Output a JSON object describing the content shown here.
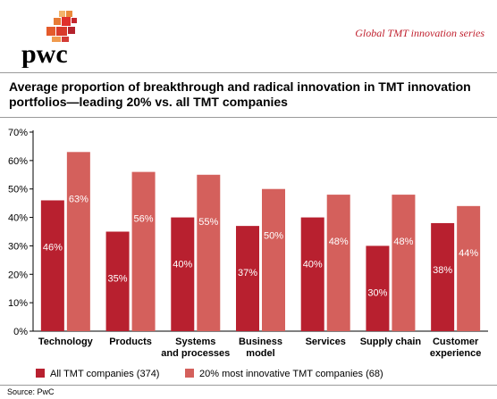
{
  "brand": {
    "logo_text": "pwc"
  },
  "header": {
    "series_label": "Global TMT innovation series"
  },
  "chart_data": {
    "type": "bar",
    "title": "Average proportion of breakthrough and radical innovation in TMT innovation portfolios—leading 20% vs. all TMT companies",
    "categories": [
      [
        "Technology"
      ],
      [
        "Products"
      ],
      [
        "Systems",
        "and processes"
      ],
      [
        "Business",
        "model"
      ],
      [
        "Services"
      ],
      [
        "Supply chain"
      ],
      [
        "Customer",
        "experience"
      ]
    ],
    "series": [
      {
        "name": "All TMT companies (374)",
        "values": [
          46,
          35,
          40,
          37,
          40,
          30,
          38
        ],
        "color": "#b8202f",
        "label_color": "#ffffff"
      },
      {
        "name": "20% most innovative TMT companies (68)",
        "values": [
          63,
          56,
          55,
          50,
          48,
          48,
          44
        ],
        "color": "#d4605c",
        "label_color": "#ffffff"
      }
    ],
    "y_ticks": [
      "0%",
      "10%",
      "20%",
      "30%",
      "40%",
      "50%",
      "60%",
      "70%"
    ],
    "ylim": [
      0,
      70
    ],
    "value_suffix": "%",
    "grid": false,
    "legend_position": "bottom"
  },
  "footer": {
    "source": "Source: PwC"
  }
}
